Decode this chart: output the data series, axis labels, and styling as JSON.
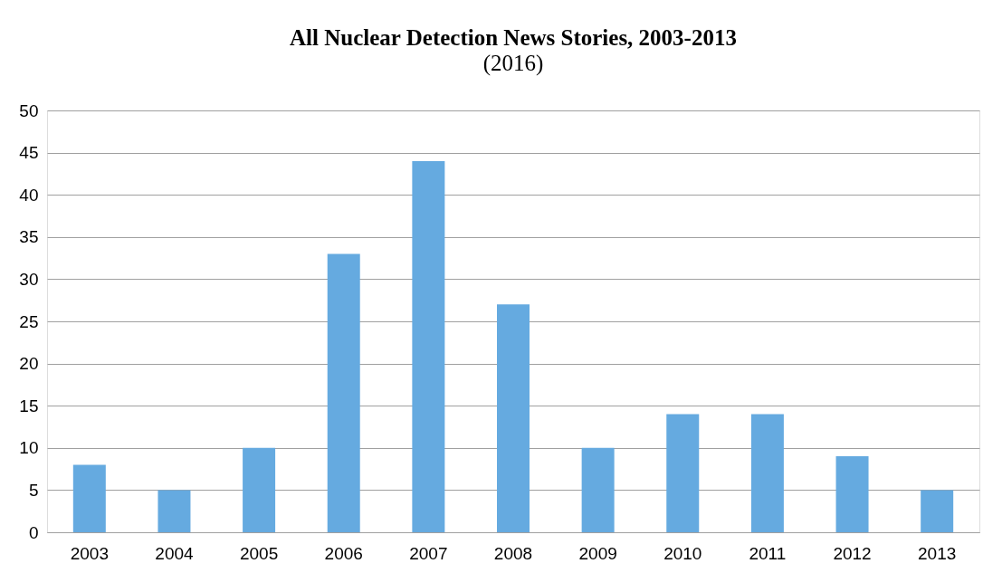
{
  "chart_data": {
    "type": "bar",
    "title": "All Nuclear Detection News Stories, 2003-2013",
    "subtitle": "(2016)",
    "categories": [
      "2003",
      "2004",
      "2005",
      "2006",
      "2007",
      "2008",
      "2009",
      "2010",
      "2011",
      "2012",
      "2013"
    ],
    "values": [
      8,
      5,
      10,
      33,
      44,
      27,
      10,
      14,
      14,
      9,
      5
    ],
    "color": "#65aae0",
    "ylim": [
      0,
      50
    ],
    "yticks": [
      0,
      5,
      10,
      15,
      20,
      25,
      30,
      35,
      40,
      45,
      50
    ],
    "grid": "y"
  }
}
